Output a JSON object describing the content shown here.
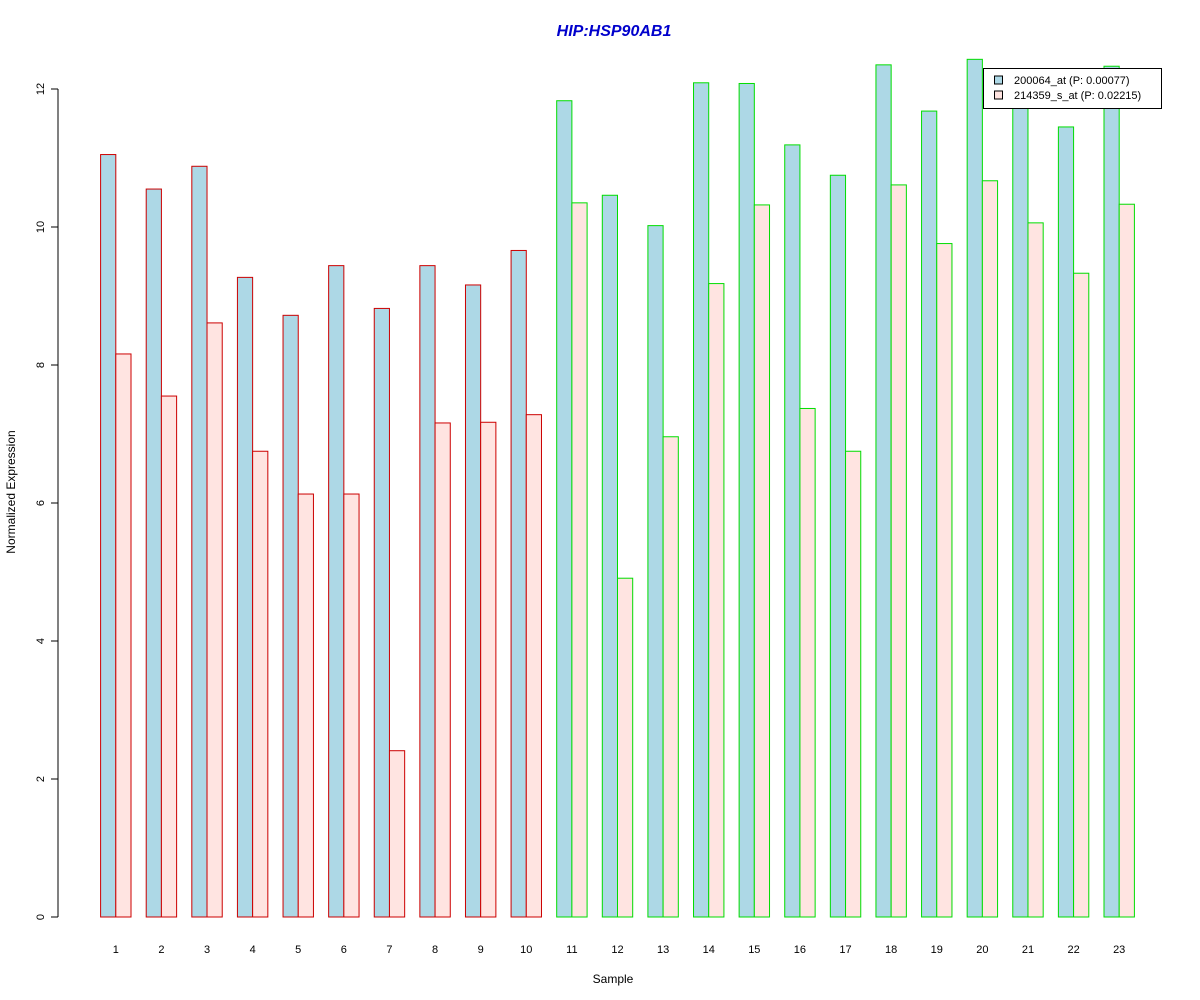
{
  "chart_data": {
    "type": "bar",
    "title": "HIP:HSP90AB1",
    "xlabel": "Sample",
    "ylabel": "Normalized Expression",
    "ylim": [
      0,
      12.4
    ],
    "yticks": [
      0,
      2,
      4,
      6,
      8,
      10,
      12
    ],
    "categories": [
      "1",
      "2",
      "3",
      "4",
      "5",
      "6",
      "7",
      "8",
      "9",
      "10",
      "11",
      "12",
      "13",
      "14",
      "15",
      "16",
      "17",
      "18",
      "19",
      "20",
      "21",
      "22",
      "23"
    ],
    "series": [
      {
        "name": "200064_at (P: 0.00077)",
        "fill": "#add8e6",
        "values": [
          11.05,
          10.55,
          10.88,
          9.27,
          8.72,
          9.44,
          8.82,
          9.44,
          9.16,
          9.66,
          11.83,
          10.46,
          10.02,
          12.09,
          12.08,
          11.19,
          10.75,
          12.35,
          11.68,
          12.43,
          11.72,
          11.45,
          12.33
        ]
      },
      {
        "name": "214359_s_at (P: 0.02215)",
        "fill": "#ffe4e1",
        "values": [
          8.16,
          7.55,
          8.61,
          6.75,
          6.13,
          6.13,
          2.41,
          7.16,
          7.17,
          7.28,
          10.35,
          4.91,
          6.96,
          9.18,
          10.32,
          7.37,
          6.75,
          10.61,
          9.76,
          10.67,
          10.06,
          9.33,
          10.33
        ]
      }
    ],
    "group_outline": [
      "#cc0000",
      "#cc0000",
      "#cc0000",
      "#cc0000",
      "#cc0000",
      "#cc0000",
      "#cc0000",
      "#cc0000",
      "#cc0000",
      "#cc0000",
      "#00dd00",
      "#00dd00",
      "#00dd00",
      "#00dd00",
      "#00dd00",
      "#00dd00",
      "#00dd00",
      "#00dd00",
      "#00dd00",
      "#00dd00",
      "#00dd00",
      "#00dd00",
      "#00dd00"
    ],
    "legend_position": "top-right",
    "grid": false
  }
}
